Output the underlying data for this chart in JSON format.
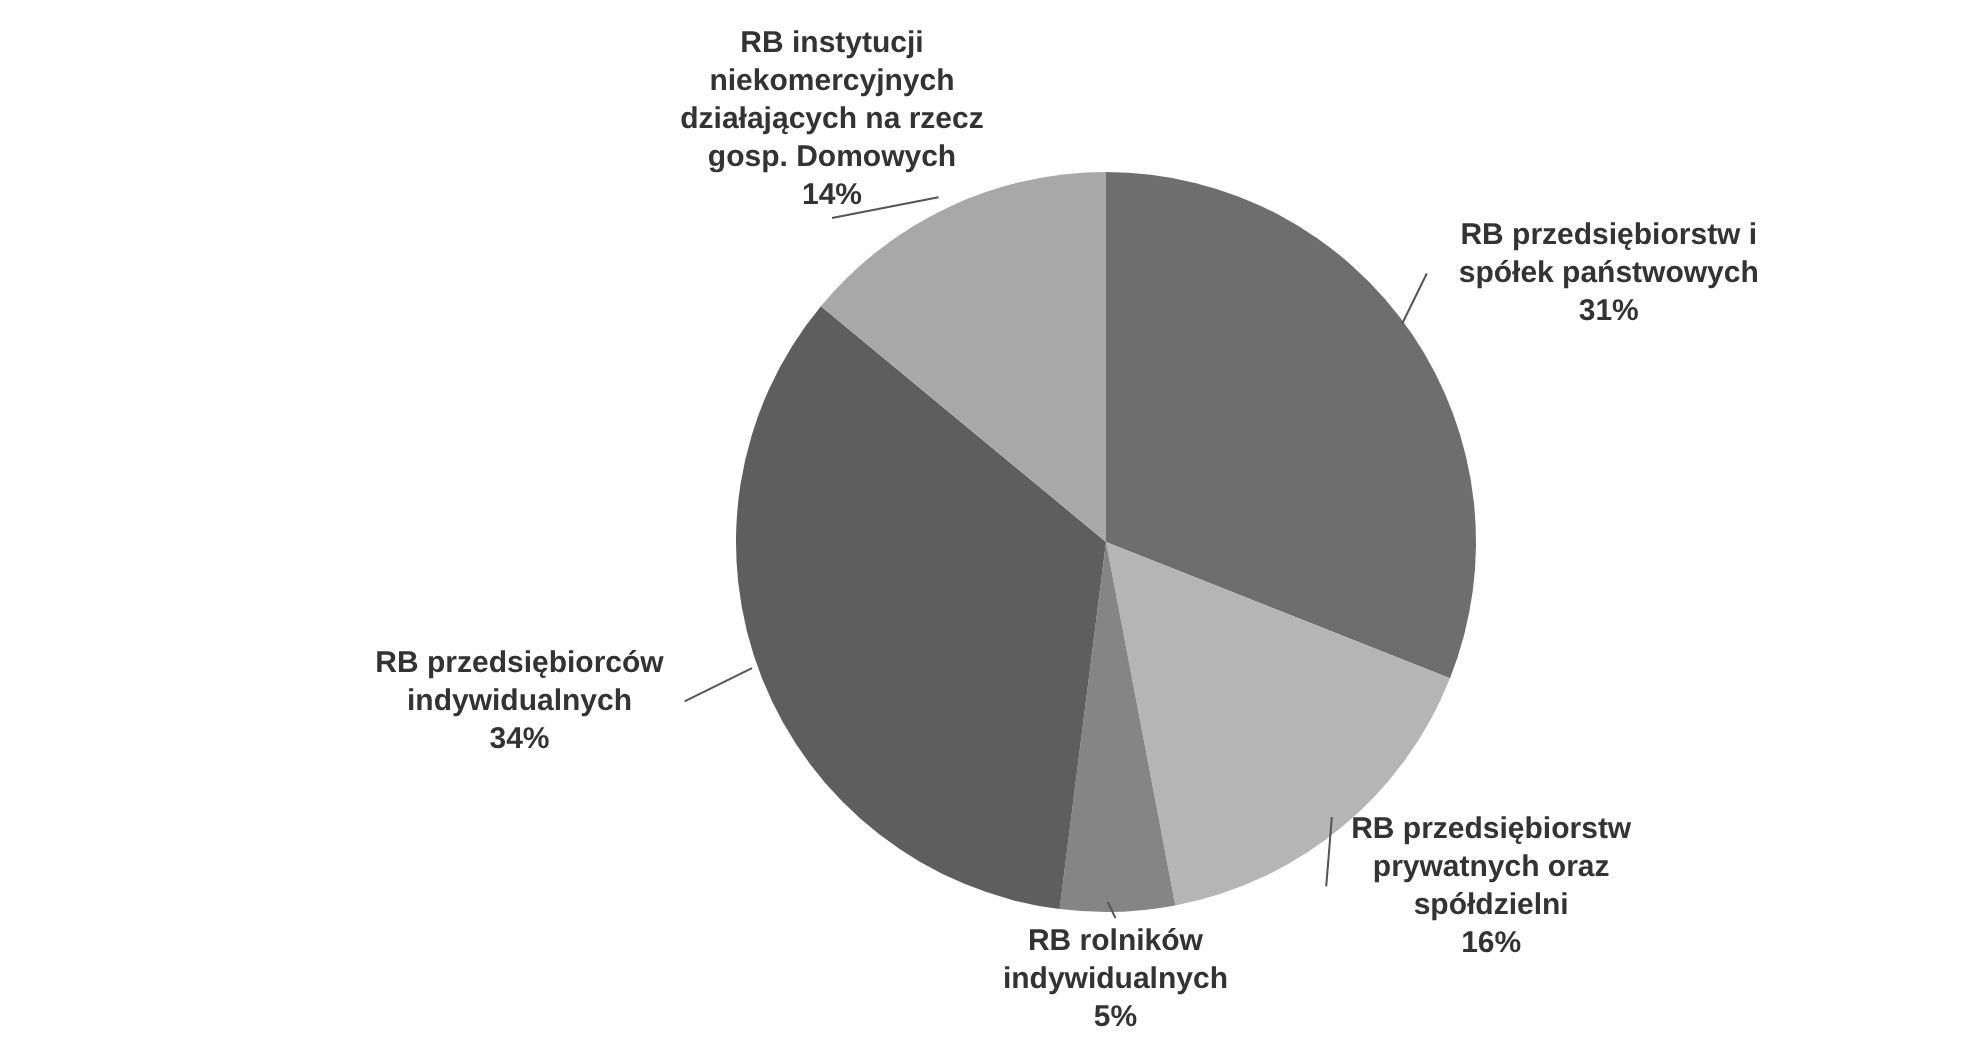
{
  "chart_data": {
    "type": "pie",
    "categories": [
      "RB przedsiębiorstw i spółek państwowych",
      "RB przedsiębiorstw prywatnych oraz spółdzielni",
      "RB rolników indywidualnych",
      "RB przedsiębiorców indywidualnych",
      "RB instytucji niekomercyjnych działających na rzecz gosp. Domowych"
    ],
    "values": [
      31,
      16,
      5,
      34,
      14
    ],
    "value_labels": [
      "31%",
      "16%",
      "5%",
      "34%",
      "14%"
    ],
    "colors": [
      "#6e6e6e",
      "#b5b5b5",
      "#858585",
      "#5e5e5e",
      "#a8a8a8"
    ]
  }
}
